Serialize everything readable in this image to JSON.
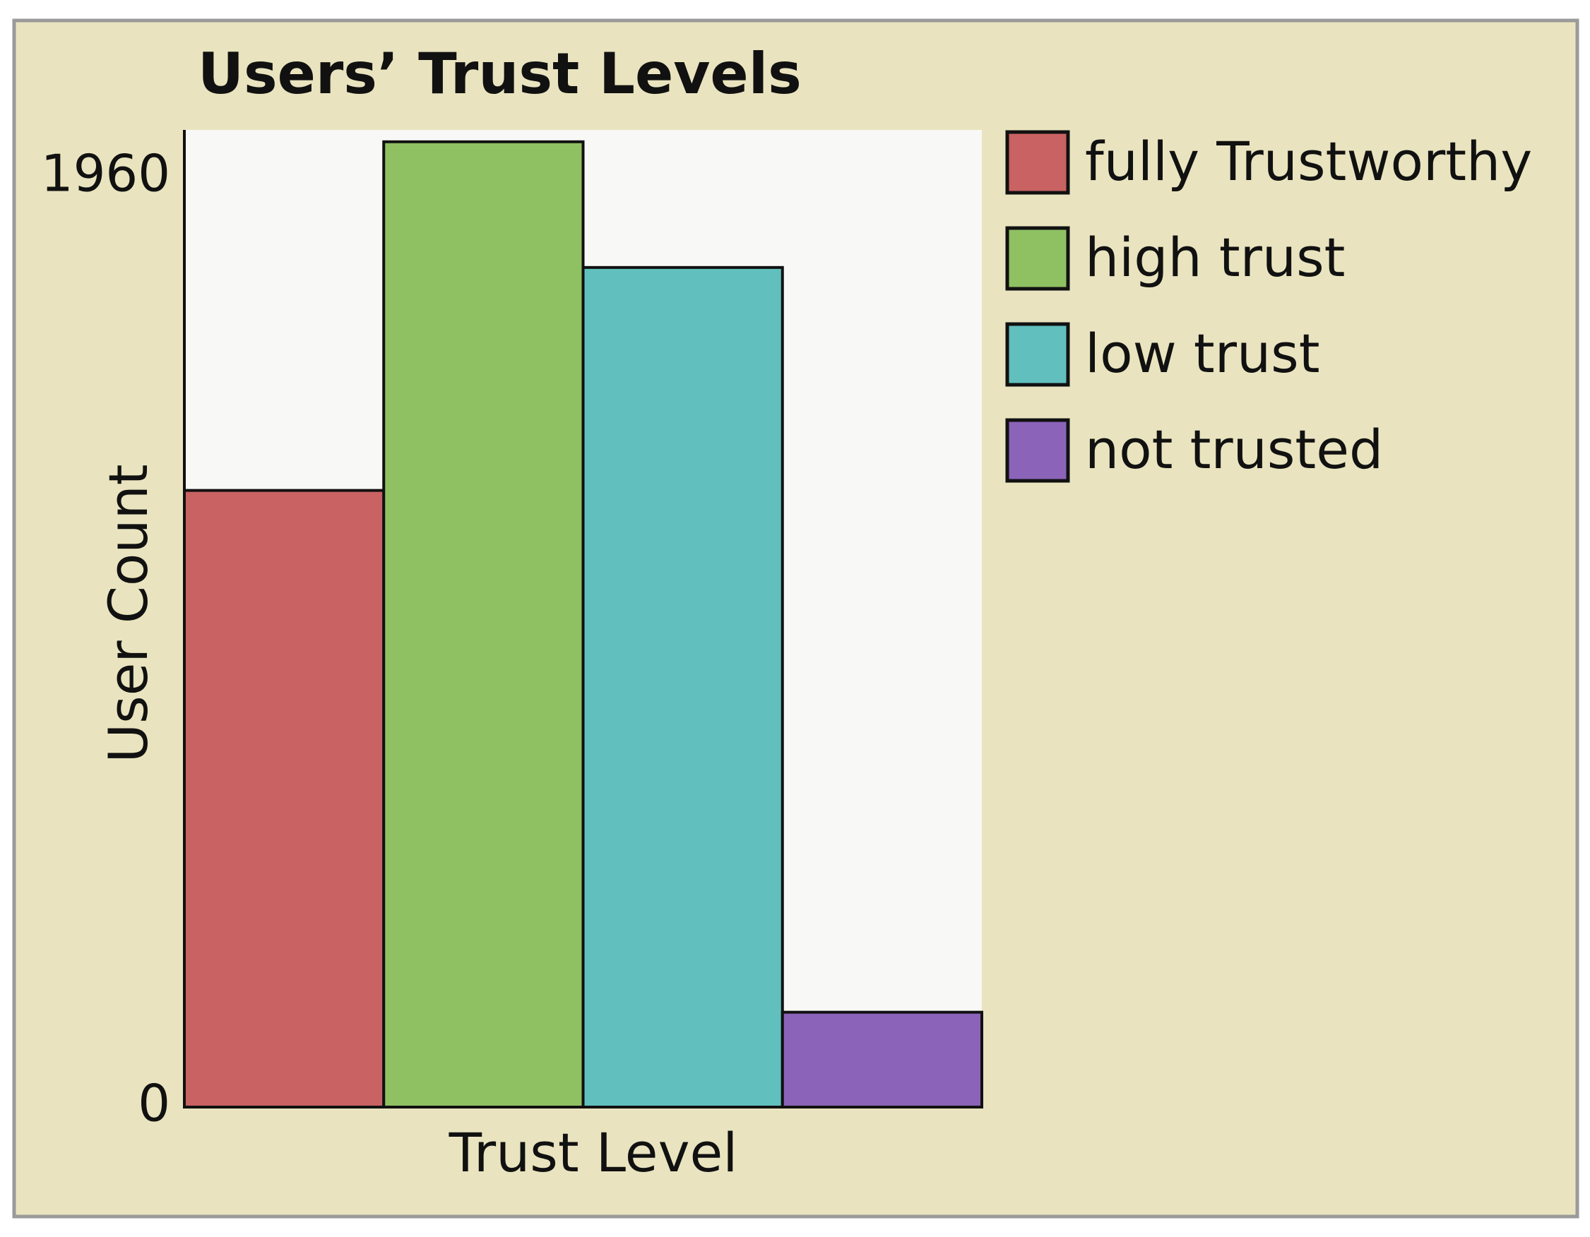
{
  "chart_data": {
    "type": "bar",
    "title": "Users’ Trust Levels",
    "x_label": "Trust Level",
    "y_label": "User Count",
    "series": [
      {
        "name": "fully Trustworthy",
        "color": "#c96262",
        "values": [
          1300
        ]
      },
      {
        "name": "high trust",
        "color": "#8fc163",
        "values": [
          2035
        ]
      },
      {
        "name": "low trust",
        "color": "#61c0bd",
        "values": [
          1770
        ]
      },
      {
        "name": "not trusted",
        "color": "#8b63b8",
        "values": [
          200
        ]
      }
    ],
    "ylim": [
      0,
      2060
    ],
    "yticks": [
      0,
      1960
    ],
    "grid": false,
    "legend": "right"
  }
}
